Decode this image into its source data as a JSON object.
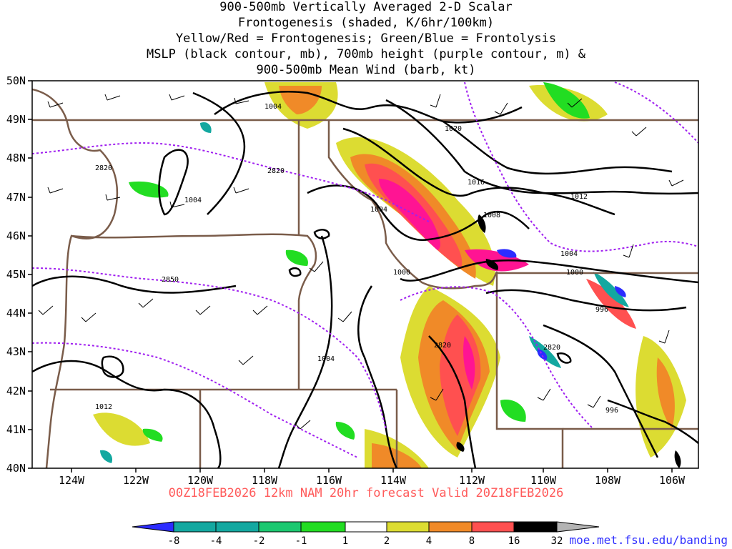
{
  "titles": [
    "900-500mb Vertically Averaged 2-D Scalar",
    "Frontogenesis (shaded, K/6hr/100km)",
    "Yellow/Red = Frontogenesis;  Green/Blue = Frontolysis",
    "MSLP (black contour, mb), 700mb height (purple contour, m) &",
    "900-500mb Mean Wind (barb, kt)"
  ],
  "valid_line": "00Z18FEB2026 12km NAM 20hr forecast Valid 20Z18FEB2026",
  "credit": "moe.met.fsu.edu/banding",
  "lat_labels": [
    "50N",
    "49N",
    "48N",
    "47N",
    "46N",
    "45N",
    "44N",
    "43N",
    "42N",
    "41N",
    "40N"
  ],
  "lon_labels": [
    "124W",
    "122W",
    "120W",
    "118W",
    "116W",
    "114W",
    "112W",
    "110W",
    "108W",
    "106W"
  ],
  "mslp_labels": [
    "1004",
    "1004",
    "1004",
    "1020",
    "1016",
    "1012",
    "1008",
    "1004",
    "1000",
    "1000",
    "996",
    "1004",
    "996",
    "1012"
  ],
  "height_labels": [
    "2820",
    "2820",
    "2850",
    "2820",
    "2820"
  ],
  "colorbar": {
    "labels": [
      "-8",
      "-4",
      "-2",
      "-1",
      "1",
      "2",
      "4",
      "8",
      "16",
      "32"
    ],
    "colors": [
      "#2c2cff",
      "#13a8a0",
      "#1bc870",
      "#22dd22",
      "#ffffff",
      "#dcdc32",
      "#f08a28",
      "#ff5050",
      "#ff1493",
      "#000000",
      "#b4b4b4"
    ]
  }
}
